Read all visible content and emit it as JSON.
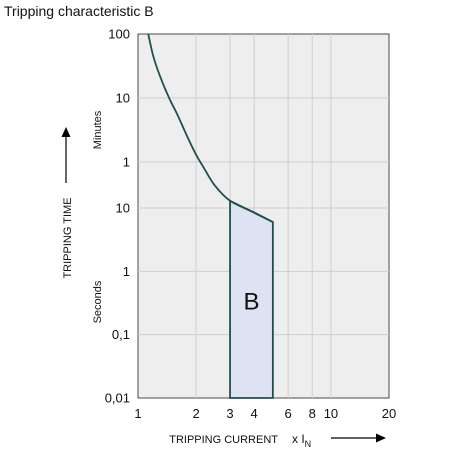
{
  "chart_data": {
    "type": "line",
    "title": "Tripping characteristic B",
    "xlabel": "TRIPPING CURRENT",
    "xlabel_unit_prefix": "x I",
    "xlabel_unit_sub": "N",
    "ylabel": "TRIPPING TIME",
    "x_scale": "log",
    "x_range": [
      1,
      20
    ],
    "x_ticks": [
      1,
      2,
      3,
      4,
      6,
      8,
      10,
      20
    ],
    "x_tick_labels": [
      "1",
      "2",
      "3",
      "4",
      "6",
      "8",
      "10",
      "20"
    ],
    "y_sections": [
      {
        "name": "Minutes",
        "unit": "min",
        "ticks": [
          1,
          10,
          100
        ],
        "tick_labels": [
          "1",
          "10",
          "100"
        ]
      },
      {
        "name": "Seconds",
        "unit": "s",
        "ticks": [
          0.01,
          0.1,
          1,
          10
        ],
        "tick_labels": [
          "0,01",
          "0,1",
          "1",
          "10"
        ]
      }
    ],
    "grid": true,
    "series": [
      {
        "role": "thermal-trip-curve",
        "points": [
          {
            "x": 1.13,
            "y": 100,
            "unit": "min"
          },
          {
            "x": 1.2,
            "y": 45,
            "unit": "min"
          },
          {
            "x": 1.3,
            "y": 22,
            "unit": "min"
          },
          {
            "x": 1.45,
            "y": 10,
            "unit": "min"
          },
          {
            "x": 1.6,
            "y": 5.5,
            "unit": "min"
          },
          {
            "x": 1.8,
            "y": 2.5,
            "unit": "min"
          },
          {
            "x": 2.0,
            "y": 1.3,
            "unit": "min"
          },
          {
            "x": 2.2,
            "y": 0.8,
            "unit": "min"
          },
          {
            "x": 2.5,
            "y": 0.43,
            "unit": "min"
          },
          {
            "x": 3.0,
            "y": 13,
            "unit": "s"
          },
          {
            "x": 4.0,
            "y": 8.5,
            "unit": "s"
          },
          {
            "x": 5.0,
            "y": 6,
            "unit": "s"
          }
        ]
      }
    ],
    "region": {
      "label": "B",
      "x_from": 3,
      "x_to": 5,
      "top_left": {
        "y": 13,
        "unit": "s"
      },
      "top_right": {
        "y": 6,
        "unit": "s"
      },
      "bottom": {
        "y": 0.01,
        "unit": "s"
      },
      "fill": "#dde3f2"
    },
    "curve_color": "#1f4f4f",
    "grid_color": "#cfcfcf",
    "plot_background": "#eeeeee",
    "arrow_color": "#000000"
  }
}
